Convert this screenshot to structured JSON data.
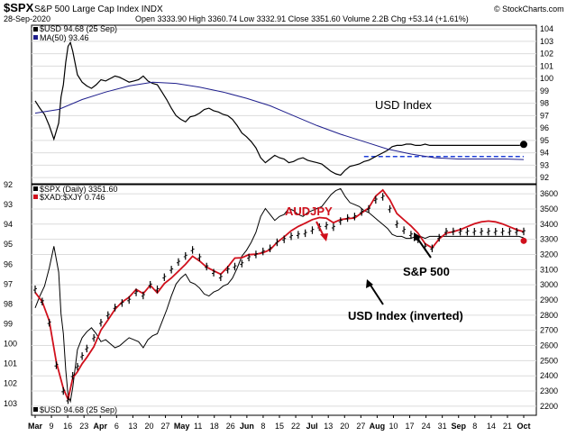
{
  "header": {
    "symbol": "$SPX",
    "name": "S&P 500 Large Cap Index INDX",
    "credit": "© StockCharts.com",
    "date": "28-Sep-2020",
    "stats": "Open 3333.90  High 3360.74  Low 3332.91  Close 3351.60  Volume 2.2B  Chg +53.14 (+1.61%)"
  },
  "chart_data": [
    {
      "type": "line",
      "panel": "top",
      "legend": [
        "$USD 94.68 (25 Sep)",
        "MA(50) 93.46"
      ],
      "ylim": [
        91.5,
        104.3
      ],
      "yticks": [
        92,
        93,
        94,
        95,
        96,
        97,
        98,
        99,
        100,
        101,
        102,
        103,
        104
      ],
      "support_level": 93.7,
      "series": [
        {
          "name": "$USD",
          "color": "#000000",
          "x": [
            0,
            2,
            4,
            6,
            8,
            10,
            11,
            12,
            13,
            14,
            15,
            16,
            18,
            20,
            22,
            24,
            26,
            28,
            30,
            32,
            34,
            36,
            38,
            40,
            42,
            44,
            46,
            48,
            50,
            52,
            54,
            56,
            58,
            60,
            62,
            64,
            66,
            68,
            70,
            72,
            74,
            76,
            78,
            80,
            82,
            84,
            86,
            88,
            90,
            92,
            94,
            96,
            98,
            100,
            102,
            104,
            106,
            108,
            110,
            112,
            114,
            116,
            118,
            120,
            122,
            124,
            126,
            128,
            130,
            132,
            134,
            136,
            138,
            140,
            142,
            144,
            146,
            148,
            150,
            152,
            154,
            156,
            158,
            160,
            162,
            164,
            166,
            168,
            170,
            172,
            174,
            176,
            178,
            180,
            182,
            184,
            186,
            188,
            190,
            192,
            194,
            196,
            198,
            200,
            202,
            204,
            206,
            208
          ],
          "values": [
            98.2,
            97.6,
            97.1,
            96.2,
            95.1,
            96.4,
            98.5,
            99.5,
            101.3,
            102.6,
            102.9,
            102.2,
            100.3,
            99.7,
            99.4,
            99.2,
            99.5,
            99.9,
            99.8,
            100.0,
            100.2,
            100.1,
            99.9,
            99.7,
            99.8,
            99.9,
            100.2,
            99.8,
            99.6,
            99.5,
            98.9,
            98.3,
            97.6,
            97.0,
            96.7,
            96.5,
            96.9,
            97.0,
            97.2,
            97.5,
            97.6,
            97.4,
            97.3,
            97.1,
            97.0,
            96.7,
            96.2,
            95.6,
            95.3,
            94.9,
            94.4,
            93.6,
            93.2,
            93.5,
            93.8,
            93.6,
            93.5,
            93.2,
            93.3,
            93.5,
            93.6,
            93.4,
            93.3,
            93.2,
            93.1,
            92.8,
            92.5,
            92.3,
            92.2,
            92.6,
            92.9,
            93.0,
            93.1,
            93.3,
            93.4,
            93.6,
            93.8,
            94.0,
            94.2,
            94.5,
            94.6,
            94.6,
            94.7,
            94.7,
            94.6,
            94.6,
            94.7,
            94.6,
            94.6,
            94.6,
            94.6,
            94.6,
            94.6,
            94.6,
            94.6,
            94.6,
            94.6,
            94.6,
            94.6,
            94.6,
            94.6,
            94.6,
            94.6,
            94.6,
            94.6,
            94.6,
            94.6,
            94.68
          ],
          "note": ""
        },
        {
          "name": "MA(50)",
          "color": "#1e1e8c",
          "x": [
            0,
            10,
            20,
            30,
            40,
            50,
            60,
            70,
            80,
            90,
            100,
            110,
            120,
            130,
            140,
            150,
            160,
            170,
            180,
            190,
            200,
            208
          ],
          "values": [
            97.2,
            97.5,
            98.3,
            98.9,
            99.4,
            99.7,
            99.6,
            99.3,
            98.9,
            98.4,
            97.8,
            97.0,
            96.2,
            95.5,
            94.9,
            94.3,
            93.9,
            93.6,
            93.5,
            93.5,
            93.5,
            93.46
          ]
        }
      ]
    },
    {
      "type": "line",
      "panel": "bottom",
      "legend": [
        "$SPX (Daily) 3351.60",
        "$XAD:$XJY 0.746",
        "$USD 94.68 (25 Sep)"
      ],
      "right_axis": {
        "label": "S&P 500",
        "ylim": [
          2140,
          3660
        ],
        "ticks": [
          2200,
          2300,
          2400,
          2500,
          2600,
          2700,
          2800,
          2900,
          3000,
          3100,
          3200,
          3300,
          3400,
          3500,
          3600
        ]
      },
      "left_axis": {
        "label": "USD Index (inverted)",
        "ylim": [
          92,
          103.6
        ],
        "inverted": true,
        "ticks": [
          92,
          93,
          94,
          95,
          96,
          97,
          98,
          99,
          100,
          101,
          102,
          103
        ]
      },
      "series": [
        {
          "name": "$SPX",
          "axis": "right",
          "color": "#000000",
          "x": [
            0,
            3,
            6,
            9,
            12,
            14,
            16,
            18,
            20,
            22,
            25,
            28,
            31,
            34,
            37,
            40,
            43,
            46,
            49,
            52,
            55,
            58,
            61,
            64,
            67,
            70,
            73,
            76,
            79,
            82,
            85,
            88,
            91,
            94,
            97,
            100,
            103,
            106,
            109,
            112,
            115,
            118,
            121,
            124,
            127,
            130,
            133,
            136,
            139,
            142,
            145,
            148,
            151,
            154,
            157,
            160,
            163,
            166,
            169,
            172,
            175,
            178,
            181,
            184,
            187,
            190,
            193,
            196,
            199,
            202,
            205,
            208
          ],
          "values": [
            2970,
            2890,
            2750,
            2470,
            2300,
            2240,
            2400,
            2460,
            2530,
            2580,
            2650,
            2750,
            2800,
            2850,
            2880,
            2900,
            2950,
            2930,
            3000,
            2970,
            3050,
            3100,
            3150,
            3190,
            3230,
            3180,
            3120,
            3080,
            3050,
            3100,
            3120,
            3140,
            3180,
            3200,
            3220,
            3240,
            3280,
            3300,
            3320,
            3330,
            3340,
            3360,
            3380,
            3390,
            3380,
            3420,
            3440,
            3450,
            3480,
            3500,
            3560,
            3580,
            3500,
            3400,
            3360,
            3330,
            3300,
            3250,
            3240,
            3310,
            3350,
            3351.6,
            3350,
            3350,
            3350,
            3350,
            3350,
            3350,
            3350,
            3350,
            3350,
            3351.6
          ]
        }
      ],
      "annotations": [
        "AUDJPY",
        "S&P 500",
        "USD Index (inverted)",
        "USD Index"
      ]
    }
  ],
  "x_axis_labels": [
    "Mar",
    "9",
    "16",
    "23",
    "Apr",
    "6",
    "13",
    "20",
    "27",
    "May",
    "11",
    "18",
    "26",
    "Jun",
    "8",
    "15",
    "22",
    "Jul",
    "13",
    "20",
    "27",
    "Aug",
    "10",
    "17",
    "24",
    "31",
    "Sep",
    "8",
    "14",
    "21",
    "Oct"
  ],
  "annotations_text": {
    "usd_index": "USD Index",
    "audjpy": "AUDJPY",
    "sp500": "S&P 500",
    "usd_inverted": "USD Index (inverted)"
  },
  "colors": {
    "audjpy": "#d0101c",
    "usd": "#000000",
    "ma": "#1e1e8c",
    "support": "#1f3fd8"
  }
}
